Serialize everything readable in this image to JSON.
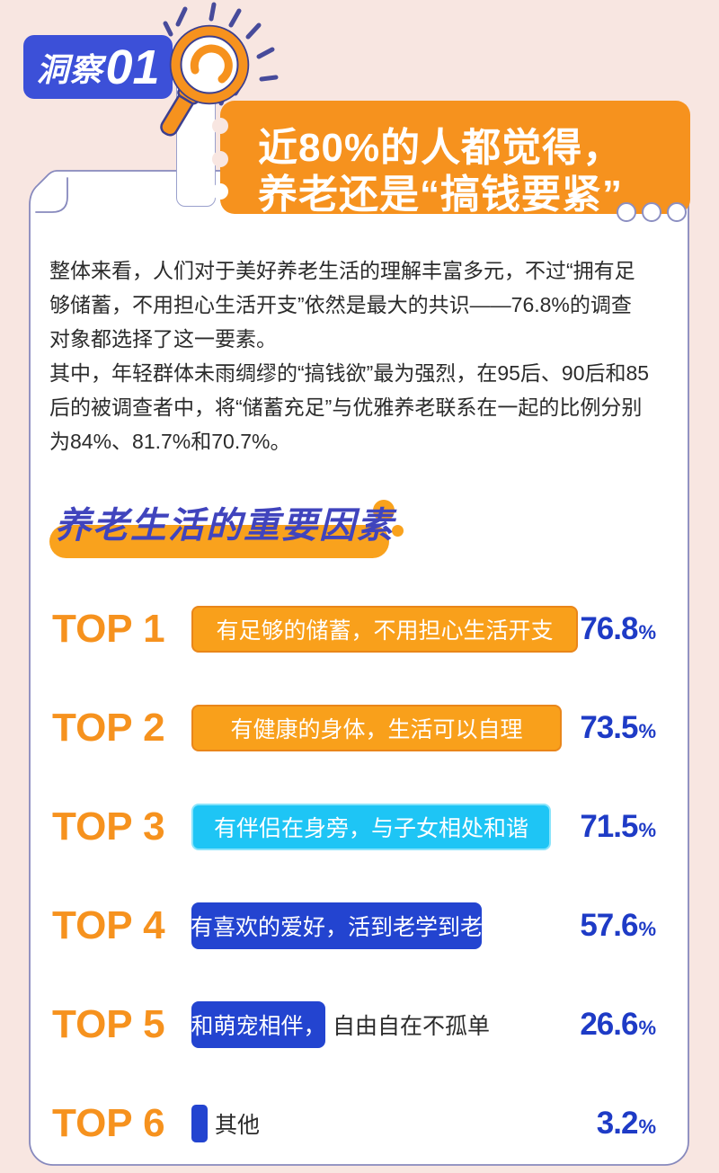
{
  "page": {
    "background": "#f8e6e1"
  },
  "insight_badge": {
    "prefix": "洞察",
    "number": "01"
  },
  "icons": {
    "magnifier": "magnifier-icon",
    "sparkles": "sparkle-icon",
    "note": "sticky-note"
  },
  "header_banner": {
    "line1": "近80%的人都觉得，",
    "line2": "养老还是“搞钱要紧”"
  },
  "intro": {
    "paragraphs": [
      "整体来看，人们对于美好养老生活的理解丰富多元，不过“拥有足够储蓄，不用担心生活开支”依然是最大的共识——76.8%的调查对象都选择了这一要素。",
      "其中，年轻群体未雨绸缪的“搞钱欲”最为强烈，在95后、90后和85后的被调查者中，将“储蓄充足”与优雅养老联系在一起的比例分别为84%、81.7%和70.7%。"
    ]
  },
  "section": {
    "title": "养老生活的重要因素"
  },
  "chart_data": {
    "type": "bar",
    "orientation": "horizontal",
    "title": "养老生活的重要因素",
    "unit": "%",
    "xlim": [
      0,
      100
    ],
    "categories": [
      "TOP 1",
      "TOP 2",
      "TOP 3",
      "TOP 4",
      "TOP 5",
      "TOP 6"
    ],
    "values": [
      76.8,
      73.5,
      71.5,
      57.6,
      26.6,
      3.2
    ],
    "items": [
      {
        "rank": "TOP 1",
        "label": "有足够的储蓄，不用担心生活开支",
        "label_inside": "有足够的储蓄，不用担心生活开支",
        "label_outside": "",
        "value": 76.8,
        "color": "orange"
      },
      {
        "rank": "TOP 2",
        "label": "有健康的身体，生活可以自理",
        "label_inside": "有健康的身体，生活可以自理",
        "label_outside": "",
        "value": 73.5,
        "color": "orange"
      },
      {
        "rank": "TOP 3",
        "label": "有伴侣在身旁，与子女相处和谐",
        "label_inside": "有伴侣在身旁，与子女相处和谐",
        "label_outside": "",
        "value": 71.5,
        "color": "cyan"
      },
      {
        "rank": "TOP 4",
        "label": "有喜欢的爱好，活到老学到老",
        "label_inside": "有喜欢的爱好，活到老学到老",
        "label_outside": "",
        "value": 57.6,
        "color": "blue"
      },
      {
        "rank": "TOP 5",
        "label": "和萌宠相伴，自由自在不孤单",
        "label_inside": "和萌宠相伴，",
        "label_outside": "自由自在不孤单",
        "value": 26.6,
        "color": "blue"
      },
      {
        "rank": "TOP 6",
        "label": "其他",
        "label_inside": "",
        "label_outside": "其他",
        "value": 3.2,
        "color": "blue"
      }
    ]
  },
  "colors": {
    "background": "#f8e6e1",
    "badge_blue": "#3c50d8",
    "banner_orange": "#f6921e",
    "card_border": "#8789bd",
    "text_dark": "#2b2b2b",
    "section_title_indigo": "#4044bd",
    "section_pill_orange": "#f9a21d",
    "rank_orange": "#f6921e",
    "percent_blue": "#1e3bc6",
    "bar_orange_fill": "#f9a01b",
    "bar_orange_border": "#e9861a",
    "bar_cyan_fill": "#1ec5f5",
    "bar_cyan_border": "#8ae4fb",
    "bar_blue_fill": "#2344d0",
    "bar_blue_border": "#2344d0"
  }
}
